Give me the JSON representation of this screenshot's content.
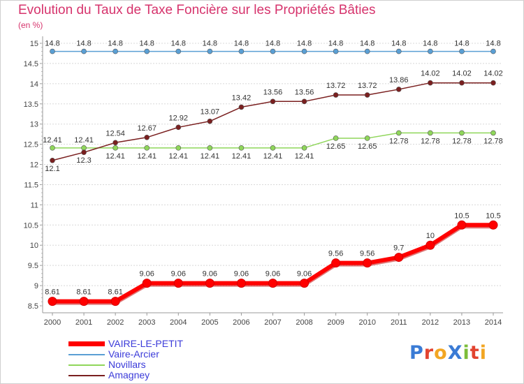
{
  "header": {
    "title": "Evolution du Taux de Taxe Foncière sur les Propriétés Bâties",
    "unit": "(en %)"
  },
  "brand": {
    "text": "ProXiti",
    "colors": [
      "#3a7bd5",
      "#e2432f",
      "#f2a623",
      "#3a7bd5",
      "#7cbd3a",
      "#e2432f",
      "#f2a623"
    ]
  },
  "chart_data": {
    "type": "line",
    "x": [
      "2000",
      "2001",
      "2002",
      "2003",
      "2004",
      "2005",
      "2006",
      "2007",
      "2008",
      "2009",
      "2010",
      "2011",
      "2012",
      "2013",
      "2014"
    ],
    "ylim": [
      8.5,
      15
    ],
    "yticks": [
      "8.5",
      "9",
      "9.5",
      "10",
      "10.5",
      "11",
      "11.5",
      "12",
      "12.5",
      "13",
      "13.5",
      "14",
      "14.5",
      "15"
    ],
    "grid": "horizontal dashed",
    "legend_position": "bottom-left",
    "series": [
      {
        "name": "VAIRE-LE-PETIT",
        "color": "#ff0000",
        "width": 6,
        "marker": 6,
        "values": [
          8.61,
          8.61,
          8.61,
          9.06,
          9.06,
          9.06,
          9.06,
          9.06,
          9.06,
          9.56,
          9.56,
          9.7,
          10,
          10.5,
          10.5
        ],
        "labels": [
          "8.61",
          "8.61",
          "8.61",
          "9.06",
          "9.06",
          "9.06",
          "9.06",
          "9.06",
          "9.06",
          "9.56",
          "9.56",
          "9.7",
          "10",
          "10.5",
          "10.5"
        ]
      },
      {
        "name": "Vaire-Arcier",
        "color": "#5a9fd4",
        "width": 1.5,
        "marker": 3.5,
        "values": [
          14.8,
          14.8,
          14.8,
          14.8,
          14.8,
          14.8,
          14.8,
          14.8,
          14.8,
          14.8,
          14.8,
          14.8,
          14.8,
          14.8,
          14.8
        ],
        "labels": [
          "14.8",
          "14.8",
          "14.8",
          "14.8",
          "14.8",
          "14.8",
          "14.8",
          "14.8",
          "14.8",
          "14.8",
          "14.8",
          "14.8",
          "14.8",
          "14.8",
          "14.8"
        ]
      },
      {
        "name": "Novillars",
        "color": "#8fd65a",
        "width": 1.5,
        "marker": 3.5,
        "values": [
          12.41,
          12.41,
          12.41,
          12.41,
          12.41,
          12.41,
          12.41,
          12.41,
          12.41,
          12.65,
          12.65,
          12.78,
          12.78,
          12.78,
          12.78
        ],
        "labels": [
          "12.41",
          "12.41",
          "12.41",
          "12.41",
          "12.41",
          "12.41",
          "12.41",
          "12.41",
          "12.41",
          "12.65",
          "12.65",
          "12.78",
          "12.78",
          "12.78",
          "12.78"
        ]
      },
      {
        "name": "Amagney",
        "color": "#7a1f1f",
        "width": 1.5,
        "marker": 3.5,
        "values": [
          12.1,
          12.3,
          12.54,
          12.67,
          12.92,
          13.07,
          13.42,
          13.56,
          13.56,
          13.72,
          13.72,
          13.86,
          14.02,
          14.02,
          14.02
        ],
        "labels": [
          "12.1",
          "12.3",
          "12.54",
          "12.67",
          "12.92",
          "13.07",
          "13.42",
          "13.56",
          "13.56",
          "13.72",
          "13.72",
          "13.86",
          "14.02",
          "14.02",
          "14.02"
        ]
      }
    ]
  }
}
